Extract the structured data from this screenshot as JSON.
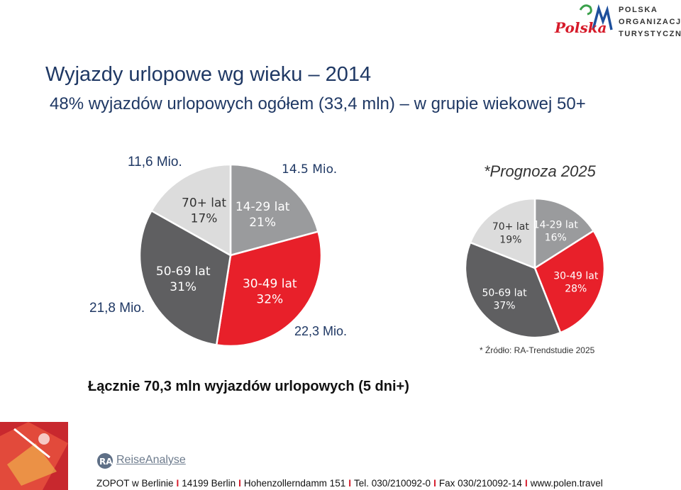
{
  "header": {
    "title": "Wyjazdy urlopowe wg wieku – 2014",
    "subtitle": "48% wyjazdów urlopowych ogółem (33,4 mln) – w grupie wiekowej 50+"
  },
  "logo": {
    "word": "Polska",
    "org_lines": [
      "POLSKA",
      "ORGANIZACJA",
      "TURYSTYCZNA"
    ]
  },
  "colors": {
    "red": "#e8202a",
    "dark_gray": "#5f5f61",
    "mid_gray": "#9a9b9d",
    "light_gray": "#dcdcdc",
    "navy": "#1f3864"
  },
  "chart_data": [
    {
      "type": "pie",
      "slices": [
        {
          "label": "14-29 lat",
          "value": 21,
          "display": "21%",
          "amount": "14.5 Mio.",
          "color": "#9a9b9d"
        },
        {
          "label": "30-49 lat",
          "value": 32,
          "display": "32%",
          "amount": "22,3 Mio.",
          "color": "#e8202a"
        },
        {
          "label": "50-69 lat",
          "value": 31,
          "display": "31%",
          "amount": "21,8 Mio.",
          "color": "#5f5f61"
        },
        {
          "label": "70+ lat",
          "value": 17,
          "display": "17%",
          "amount": "11,6 Mio.",
          "color": "#dcdcdc"
        }
      ]
    },
    {
      "type": "pie",
      "title": "*Prognoza 2025",
      "slices": [
        {
          "label": "14-29 lat",
          "value": 16,
          "display": "16%",
          "color": "#9a9b9d"
        },
        {
          "label": "30-49 lat",
          "value": 28,
          "display": "28%",
          "color": "#e8202a"
        },
        {
          "label": "50-69 lat",
          "value": 37,
          "display": "37%",
          "color": "#5f5f61"
        },
        {
          "label": "70+ lat",
          "value": 19,
          "display": "19%",
          "color": "#dcdcdc"
        }
      ]
    }
  ],
  "source_note": "* Źródło: RA-Trendstudie 2025",
  "total_text": "Łącznie 70,3 mln wyjazdów urlopowych (5 dni+)",
  "ra_logo": {
    "badge": "RA",
    "name": "ReiseAnalyse"
  },
  "footer": [
    "ZOPOT w Berlinie",
    "14199 Berlin",
    "Hohenzollerndamm 151",
    "Tel. 030/210092-0",
    "Fax 030/210092-14",
    "www.polen.travel"
  ]
}
